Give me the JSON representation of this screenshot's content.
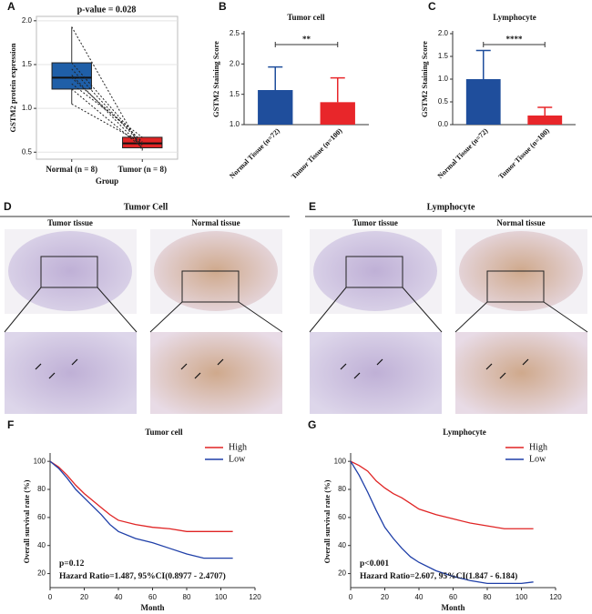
{
  "chart_data": [
    {
      "type": "box",
      "label": "A",
      "title": "p-value = 0.028",
      "xlabel": "Group",
      "ylabel": "GSTM2 protein expression",
      "categories": [
        "Normal (n = 8)",
        "Tumor (n = 8)"
      ],
      "colors": [
        "#1f5fa8",
        "#e02424"
      ],
      "boxes": [
        {
          "min": 1.05,
          "q1": 1.22,
          "median": 1.35,
          "q3": 1.52,
          "max": 1.93
        },
        {
          "min": 0.52,
          "q1": 0.55,
          "median": 0.6,
          "q3": 0.67,
          "max": 0.67
        }
      ],
      "paired_values": [
        [
          1.93,
          0.52
        ],
        [
          1.52,
          0.6
        ],
        [
          1.45,
          0.58
        ],
        [
          1.38,
          0.55
        ],
        [
          1.35,
          0.62
        ],
        [
          1.28,
          0.67
        ],
        [
          1.22,
          0.55
        ],
        [
          1.05,
          0.6
        ]
      ],
      "ylim": [
        0.42,
        2.05
      ],
      "yticks": [
        0.5,
        {
          "value": 1,
          "label": "1.0"
        },
        1.5,
        {
          "value": 2,
          "label": "2.0"
        }
      ],
      "grid": true
    },
    {
      "type": "bar",
      "label": "B",
      "title": "Tumor cell",
      "ylabel": "GSTM2 Staining Score",
      "categories": [
        "Normal Tissue (n=72)",
        "Tumor Tissue (n=100)"
      ],
      "values": [
        1.57,
        1.37
      ],
      "errors": [
        0.38,
        0.4
      ],
      "colors": [
        "#1f4e9c",
        "#e8262a"
      ],
      "ylim": [
        1,
        2.5
      ],
      "yticks": [
        {
          "value": 1,
          "label": "1.0"
        },
        1.5,
        {
          "value": 2,
          "label": "2.0"
        },
        2.5
      ],
      "annotation": "**"
    },
    {
      "type": "bar",
      "label": "C",
      "title": "Lymphocyte",
      "ylabel": "GSTM2 Staining Score",
      "categories": [
        "Normal Tissue (n=72)",
        "Tumor Tissue (n=100)"
      ],
      "values": [
        1.0,
        0.2
      ],
      "errors": [
        0.63,
        0.18
      ],
      "colors": [
        "#1f4e9c",
        "#e8262a"
      ],
      "ylim": [
        0,
        2
      ],
      "yticks": [
        {
          "value": 0,
          "label": "0.0"
        },
        0.5,
        {
          "value": 1,
          "label": "1.0"
        },
        1.5,
        {
          "value": 2,
          "label": "2.0"
        }
      ],
      "annotation": "****"
    },
    {
      "type": "line",
      "label": "F",
      "title": "Tumor cell",
      "xlabel": "Month",
      "ylabel": "Overall survival rate (%)",
      "series": [
        {
          "name": "High",
          "color": "#e02424",
          "x": [
            0,
            5,
            10,
            15,
            20,
            25,
            30,
            35,
            40,
            50,
            60,
            70,
            80,
            90,
            100,
            107
          ],
          "values": [
            100,
            96,
            90,
            83,
            77,
            72,
            67,
            62,
            58,
            55,
            53,
            52,
            50,
            50,
            50,
            50
          ]
        },
        {
          "name": "Low",
          "color": "#1f3fa8",
          "x": [
            0,
            5,
            10,
            15,
            20,
            25,
            30,
            35,
            40,
            50,
            60,
            70,
            80,
            90,
            100,
            107
          ],
          "values": [
            100,
            95,
            88,
            80,
            74,
            68,
            62,
            55,
            50,
            45,
            42,
            38,
            34,
            31,
            31,
            31
          ]
        }
      ],
      "xlim": [
        0,
        120
      ],
      "xticks": [
        0,
        20,
        40,
        60,
        80,
        100,
        120
      ],
      "ylim": [
        10,
        104
      ],
      "yticks": [
        20,
        40,
        60,
        80,
        100
      ],
      "annotations": [
        "p=0.12",
        "Hazard Ratio=1.487, 95%CI(0.8977 - 2.4707)"
      ]
    },
    {
      "type": "line",
      "label": "G",
      "title": "Lymphocyte",
      "xlabel": "Month",
      "ylabel": "Overall survival rate (%)",
      "series": [
        {
          "name": "High",
          "color": "#e02424",
          "x": [
            0,
            5,
            10,
            15,
            20,
            25,
            30,
            35,
            40,
            50,
            60,
            70,
            80,
            90,
            100,
            107
          ],
          "values": [
            100,
            97,
            93,
            86,
            81,
            77,
            74,
            70,
            66,
            62,
            59,
            56,
            54,
            52,
            52,
            52
          ]
        },
        {
          "name": "Low",
          "color": "#1f3fa8",
          "x": [
            0,
            5,
            10,
            15,
            20,
            25,
            30,
            35,
            40,
            50,
            60,
            70,
            80,
            90,
            100,
            107
          ],
          "values": [
            100,
            90,
            78,
            65,
            53,
            45,
            38,
            32,
            28,
            22,
            18,
            15,
            13,
            13,
            13,
            14
          ]
        }
      ],
      "xlim": [
        0,
        120
      ],
      "xticks": [
        0,
        20,
        40,
        60,
        80,
        100,
        120
      ],
      "ylim": [
        10,
        104
      ],
      "yticks": [
        20,
        40,
        60,
        80,
        100
      ],
      "annotations": [
        "p<0.001",
        "Hazard Ratio=2.607, 95%CI(1.847 - 6.184)"
      ]
    }
  ],
  "image_panels": [
    {
      "label": "D",
      "title": "Tumor  Cell",
      "columns": [
        "Tumor tissue",
        "Normal tissue"
      ]
    },
    {
      "label": "E",
      "title": "Lymphocyte",
      "columns": [
        "Tumor tissue",
        "Normal tissue"
      ]
    }
  ]
}
